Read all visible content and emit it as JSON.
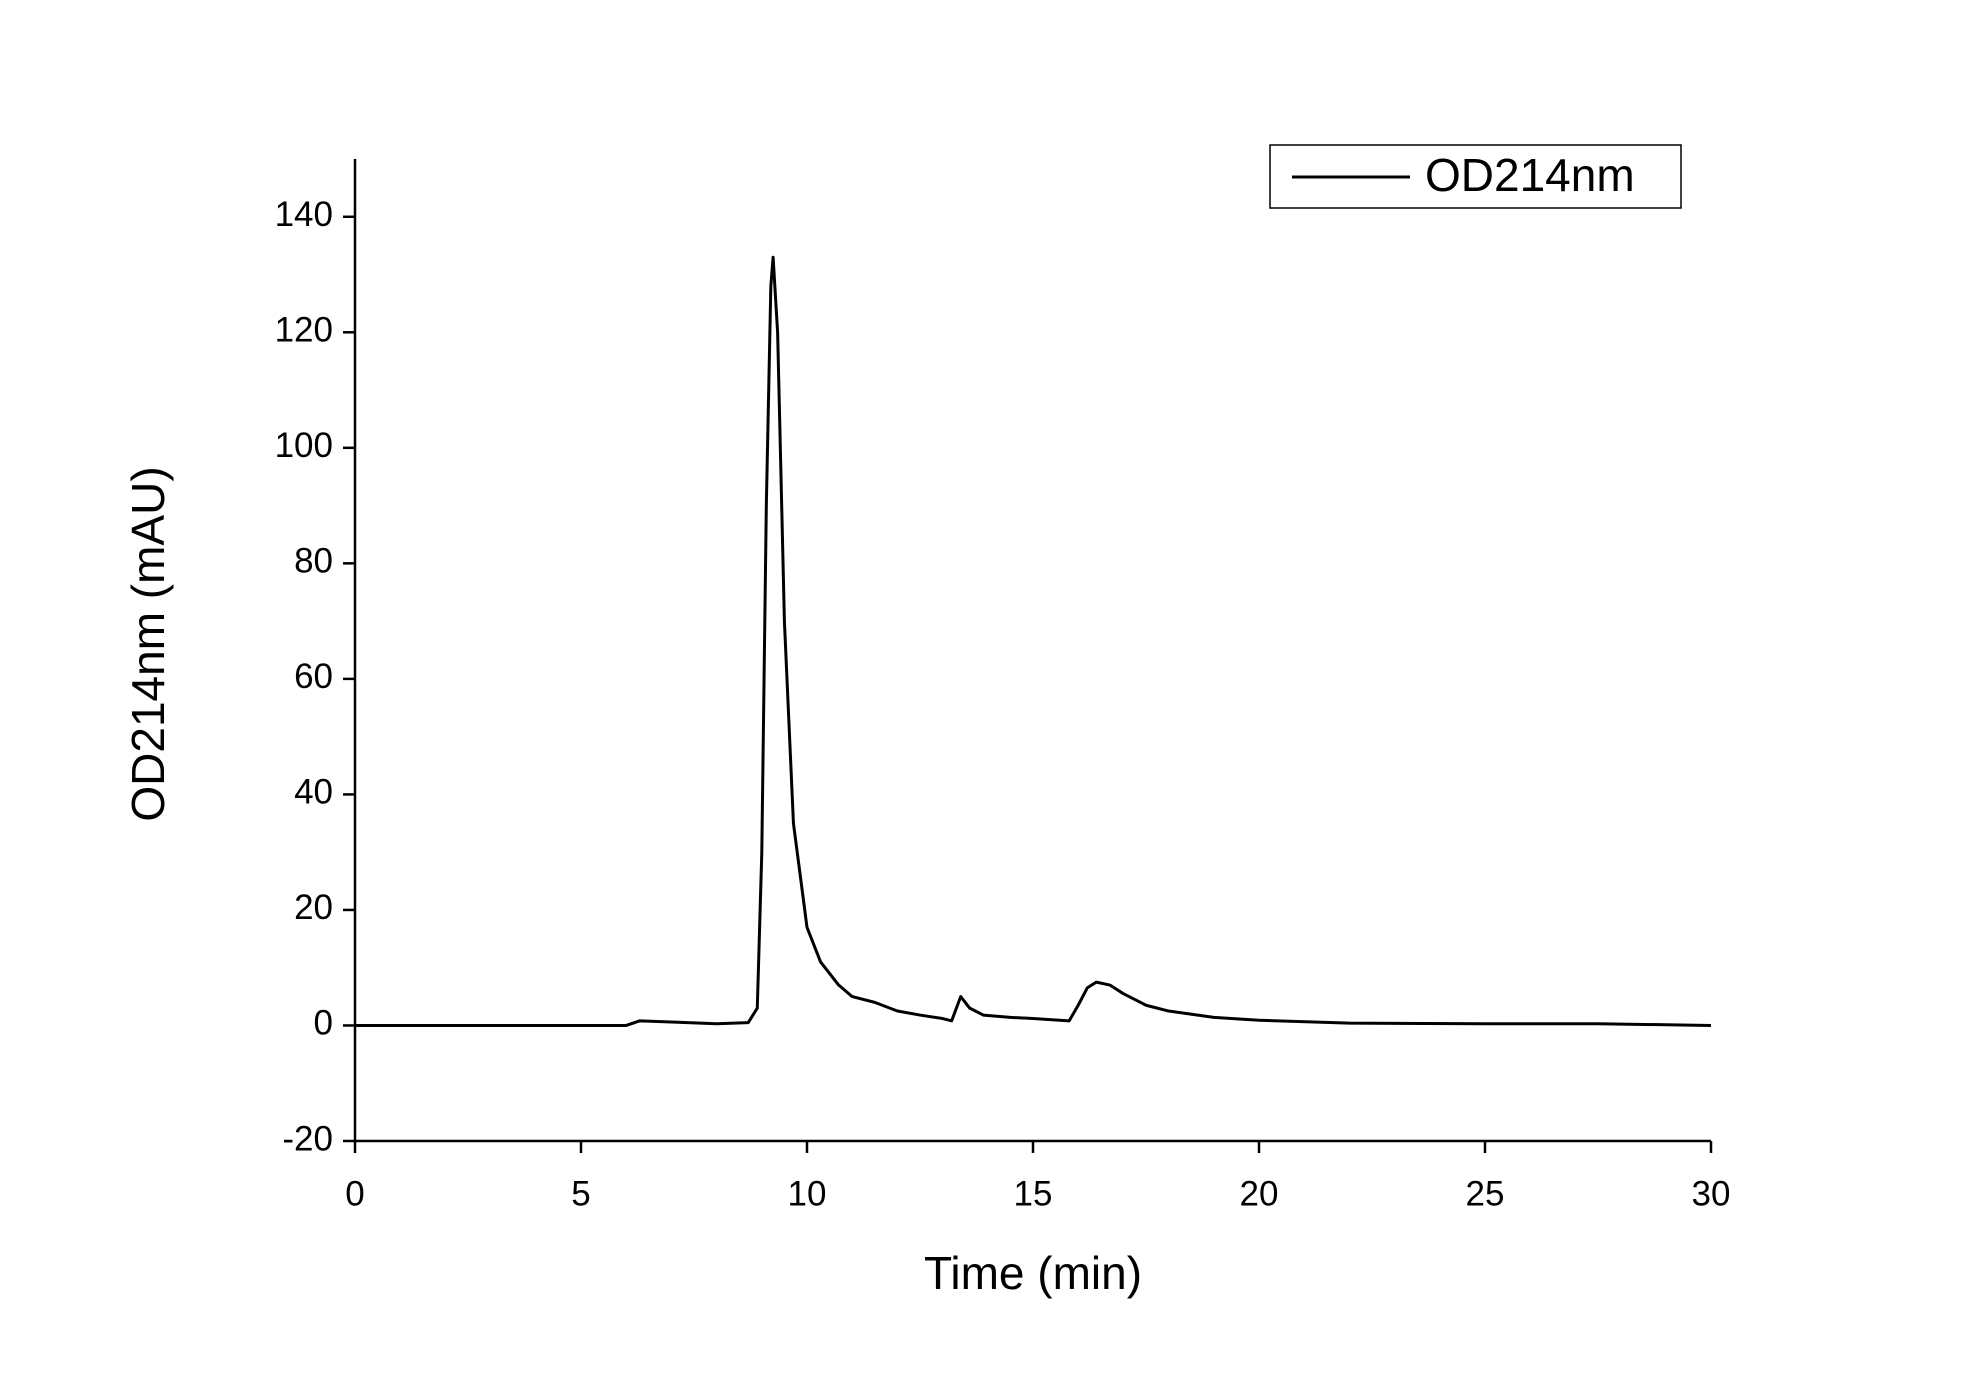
{
  "chart_data": {
    "type": "line",
    "x_label": "Time (min)",
    "y_label": "OD214nm (mAU)",
    "x": [
      0,
      6.0,
      6.3,
      7,
      8,
      8.7,
      8.9,
      9.0,
      9.1,
      9.2,
      9.25,
      9.35,
      9.5,
      9.7,
      10.0,
      10.3,
      10.7,
      11,
      11.5,
      12,
      12.5,
      13,
      13.2,
      13.4,
      13.6,
      13.9,
      14.5,
      15,
      15.8,
      16.0,
      16.2,
      16.4,
      16.7,
      17,
      17.5,
      18,
      19,
      20,
      22,
      25,
      27.5,
      30
    ],
    "series": [
      {
        "name": "OD214nm",
        "color": "#000000",
        "values": [
          0,
          0,
          0.8,
          0.6,
          0.3,
          0.5,
          3,
          30,
          90,
          128,
          133,
          120,
          70,
          35,
          17,
          11,
          7,
          5,
          4,
          2.5,
          1.8,
          1.2,
          0.8,
          5,
          3,
          1.8,
          1.4,
          1.2,
          0.8,
          3.5,
          6.5,
          7.5,
          7,
          5.5,
          3.5,
          2.5,
          1.4,
          0.9,
          0.4,
          0.3,
          0.3,
          0
        ]
      }
    ],
    "xlim": [
      0,
      30
    ],
    "xticks": [
      0,
      5,
      10,
      15,
      20,
      25,
      30
    ],
    "ylim": [
      -20,
      150
    ],
    "yticks": [
      -20,
      0,
      20,
      40,
      60,
      80,
      100,
      120,
      140
    ],
    "grid": false,
    "legend": "upper right"
  }
}
